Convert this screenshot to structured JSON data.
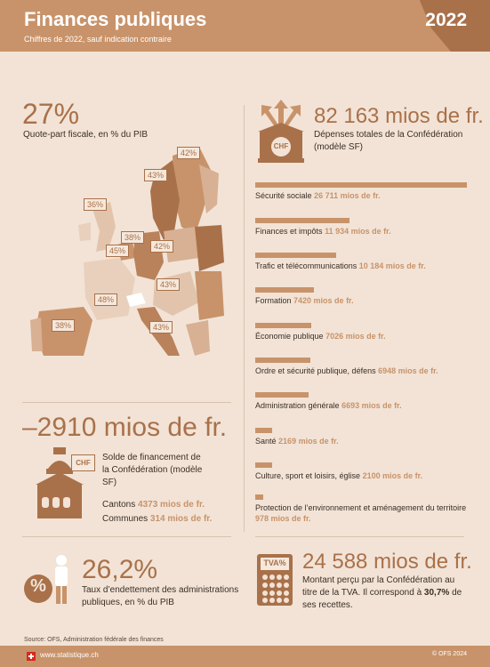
{
  "header": {
    "title": "Finances publiques",
    "subtitle": "Chiffres de 2022, sauf indication contraire",
    "year": "2022"
  },
  "fiscal_quota": {
    "value": "27%",
    "label": "Quote-part fiscale, en % du PIB",
    "map_labels": [
      "42%",
      "43%",
      "36%",
      "38%",
      "45%",
      "42%",
      "43%",
      "48%",
      "38%",
      "43%"
    ]
  },
  "expenditure": {
    "value": "82 163 mios de fr.",
    "label": "Dépenses totales de la Confédération (modèle SF)",
    "icon_text": "CHF",
    "items": [
      {
        "name": "Sécurité sociale",
        "amount": "26 711 mios de fr.",
        "value": 26711
      },
      {
        "name": "Finances et impôts",
        "amount": "11 934 mios de fr.",
        "value": 11934
      },
      {
        "name": "Trafic et télécommunications",
        "amount": "10 184 mios de fr.",
        "value": 10184
      },
      {
        "name": "Formation",
        "amount": "7420 mios de fr.",
        "value": 7420
      },
      {
        "name": "Économie publique",
        "amount": "7026 mios de fr.",
        "value": 7026
      },
      {
        "name": "Ordre et sécurité publique, défens",
        "amount": "6948 mios de fr.",
        "value": 6948
      },
      {
        "name": "Administration générale",
        "amount": "6693 mios de fr.",
        "value": 6693
      },
      {
        "name": "Santé",
        "amount": "2169 mios de fr.",
        "value": 2169
      },
      {
        "name": "Culture, sport et loisirs, église",
        "amount": "2100 mios de fr.",
        "value": 2100
      },
      {
        "name": "Protection de l’environnement et aménagement du territoire",
        "amount": "978 mios de fr.",
        "value": 978
      }
    ]
  },
  "balance": {
    "value": "–2910 mios de fr.",
    "label": "Solde de financement de la Confédération (modèle SF)",
    "icon_text": "CHF",
    "cantons_label": "Cantons",
    "cantons_value": "4373 mios de fr.",
    "communes_label": "Communes",
    "communes_value": "314 mios de fr."
  },
  "debt": {
    "value": "26,2%",
    "label": "Taux d’endettement des administrations publiques, en % du PIB",
    "icon_text": "%"
  },
  "vat": {
    "value": "24 588 mios de fr.",
    "label_prefix": "Montant perçu par la Confédération au titre de la TVA. Il correspond à",
    "share": "30,7%",
    "label_suffix": "de ses recettes.",
    "icon_text": "TVA%"
  },
  "footer": {
    "source": "Source: OFS, Administration fédérale des finances",
    "site": "www.statistique.ch",
    "copyright": "© OFS 2024"
  },
  "colors": {
    "accent": "#c8936a",
    "dark": "#a9714a",
    "background": "#f2e3d6"
  }
}
